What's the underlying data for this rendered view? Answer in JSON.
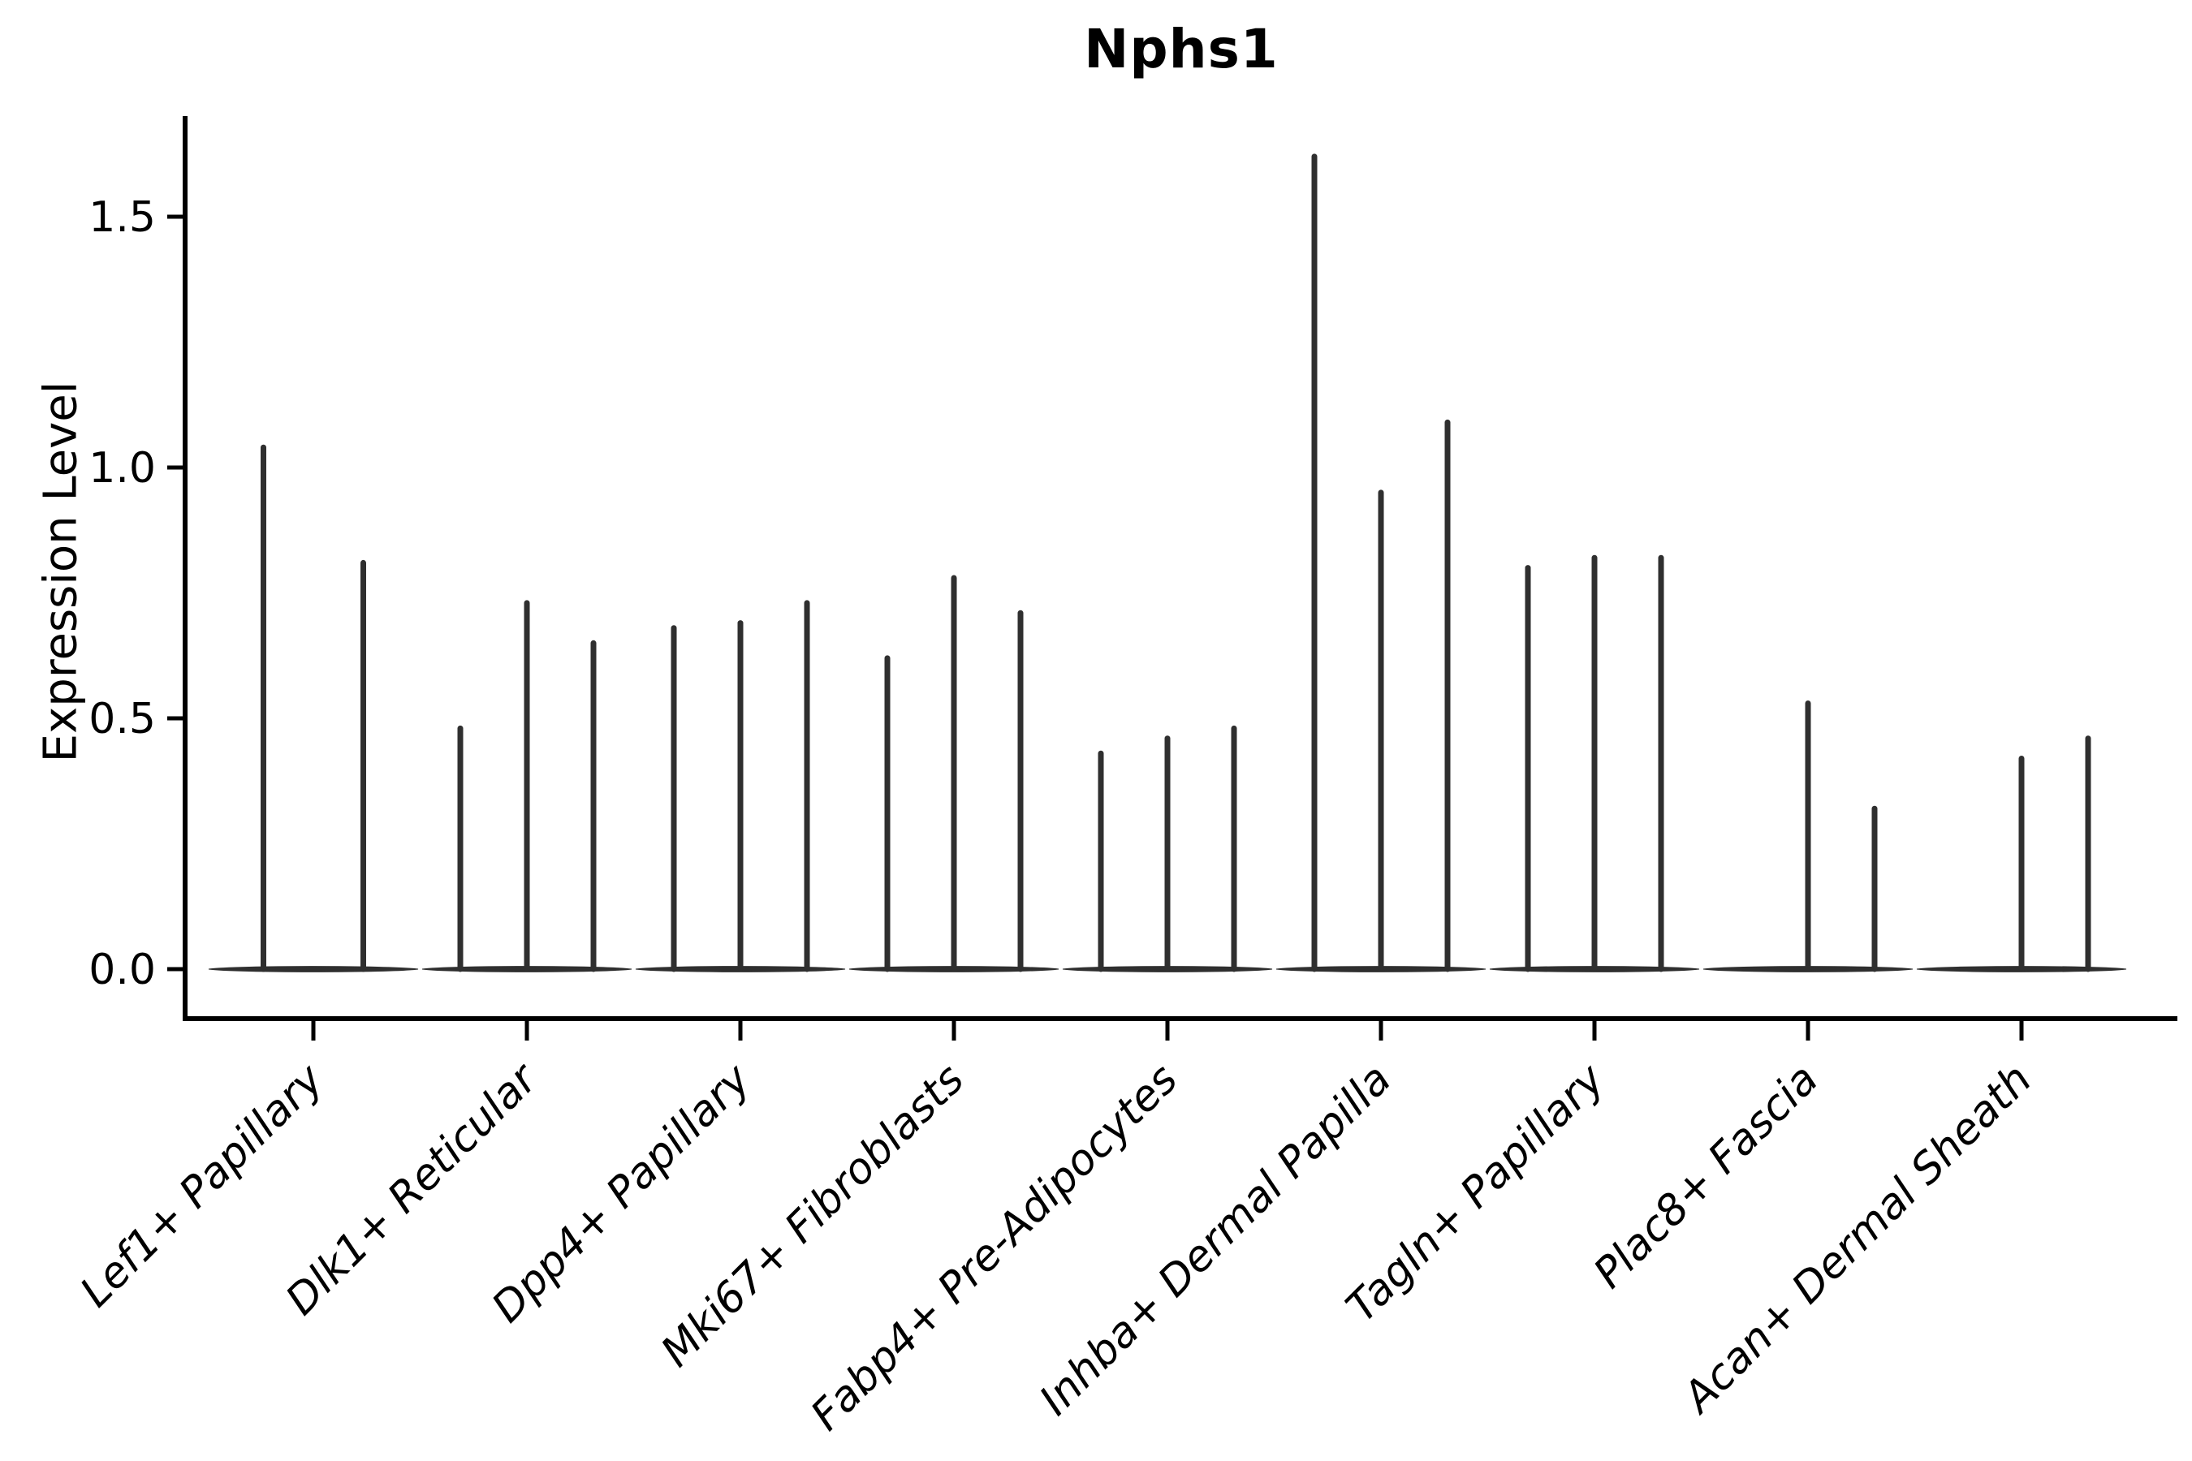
{
  "figure": {
    "background": "#ffffff"
  },
  "chart_data": {
    "type": "violin",
    "title": "Nphs1",
    "xlabel": "",
    "ylabel": "Expression Level",
    "yticks": [
      0.0,
      0.5,
      1.0,
      1.5
    ],
    "ytick_labels": [
      "0.0",
      "0.5",
      "1.0",
      "1.5"
    ],
    "ylim": [
      -0.1,
      1.7
    ],
    "grid": false,
    "legend": "none",
    "x_tick_rotation_deg": 45,
    "style_note": "needle-thin violins: flat baseline at 0 with narrow spikes up to max expression",
    "colors": {
      "violin": "#2f2f2f",
      "axis": "#000000",
      "text": "#000000",
      "background": "#ffffff"
    },
    "categories": [
      "Lef1+ Papillary",
      "Dlk1+ Reticular",
      "Dpp4+ Papillary",
      "Mki67+ Fibroblasts",
      "Fabp4+ Pre-Adipocytes",
      "Inhba+ Dermal Papilla",
      "Tagln+ Papillary",
      "Plac8+ Fascia",
      "Acan+ Dermal Sheath"
    ],
    "violins": [
      {
        "category": "Lef1+ Papillary",
        "spike_heights": [
          1.04,
          0.81
        ]
      },
      {
        "category": "Dlk1+ Reticular",
        "spike_heights": [
          0.48,
          0.73,
          0.65
        ]
      },
      {
        "category": "Dpp4+ Papillary",
        "spike_heights": [
          0.68,
          0.69,
          0.73
        ]
      },
      {
        "category": "Mki67+ Fibroblasts",
        "spike_heights": [
          0.62,
          0.78,
          0.71
        ]
      },
      {
        "category": "Fabp4+ Pre-Adipocytes",
        "spike_heights": [
          0.43,
          0.46,
          0.48
        ]
      },
      {
        "category": "Inhba+ Dermal Papilla",
        "spike_heights": [
          1.62,
          0.95,
          1.09
        ]
      },
      {
        "category": "Tagln+ Papillary",
        "spike_heights": [
          0.8,
          0.82,
          0.82
        ]
      },
      {
        "category": "Plac8+ Fascia",
        "spike_heights": [
          0,
          0.53,
          0.32
        ]
      },
      {
        "category": "Acan+ Dermal Sheath",
        "spike_heights": [
          0,
          0.42,
          0.46
        ]
      }
    ]
  }
}
